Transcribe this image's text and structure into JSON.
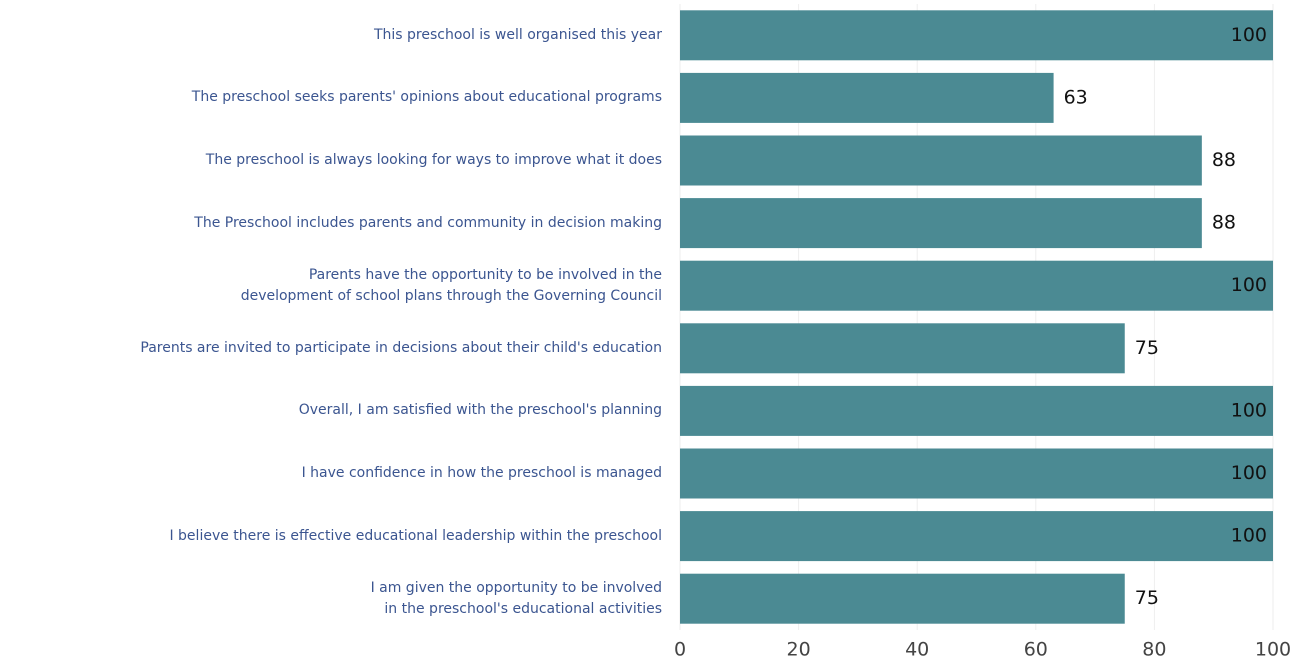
{
  "chart_data": {
    "type": "barh",
    "categories": [
      "This preschool is well organised this year",
      "The preschool seeks parents' opinions about educational programs",
      "The preschool is always looking for ways to improve what it does",
      "The Preschool includes parents and community in decision making",
      "Parents have the opportunity to be involved in the\ndevelopment of school plans through the Governing Council",
      "Parents are invited to participate in decisions about their child's education",
      "Overall, I am satisfied with the preschool's planning",
      "I have confidence in how the preschool is managed",
      "I believe there is effective educational leadership within the preschool",
      "I am given the opportunity to be involved\nin the preschool's educational activities"
    ],
    "values": [
      100,
      63,
      88,
      88,
      100,
      75,
      100,
      100,
      100,
      75
    ],
    "color": "#4b8a93",
    "xlim": [
      0,
      100
    ],
    "xticks": [
      0,
      20,
      40,
      60,
      80,
      100
    ],
    "grid": true
  }
}
